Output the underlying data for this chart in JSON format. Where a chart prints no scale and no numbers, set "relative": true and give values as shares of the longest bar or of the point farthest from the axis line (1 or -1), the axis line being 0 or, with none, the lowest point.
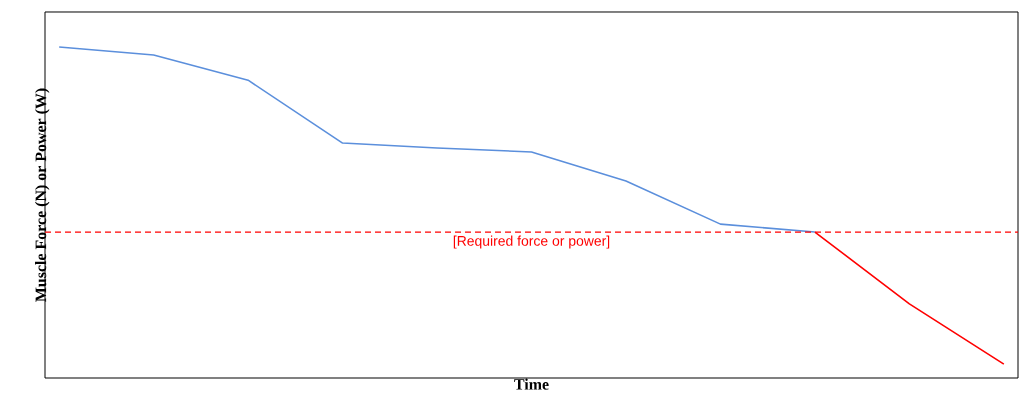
{
  "chart_data": {
    "type": "line",
    "relative": true,
    "xlabel": "Time",
    "ylabel": "Muscle Force (N) or Power (W)",
    "categories": [
      null,
      null,
      null,
      null,
      null,
      null,
      null,
      null,
      null,
      null,
      null
    ],
    "tick_labels": false,
    "line_style": "solid",
    "marker": "none",
    "series": [
      {
        "color": "#5b8fdc",
        "values": [
          1,
          0.976,
          0.9,
          0.71,
          0.695,
          0.683,
          0.595,
          0.465,
          0.441,
          null,
          null
        ]
      },
      {
        "color": "#ff0000",
        "values": [
          null,
          null,
          null,
          null,
          null,
          null,
          null,
          null,
          0.441,
          0.224,
          0.042
        ]
      }
    ],
    "ref_lines": [
      {
        "axis": "y",
        "value": 0.441,
        "label": "[Required force or power]",
        "color": "#ff0000",
        "line_style": "dashed"
      }
    ]
  }
}
